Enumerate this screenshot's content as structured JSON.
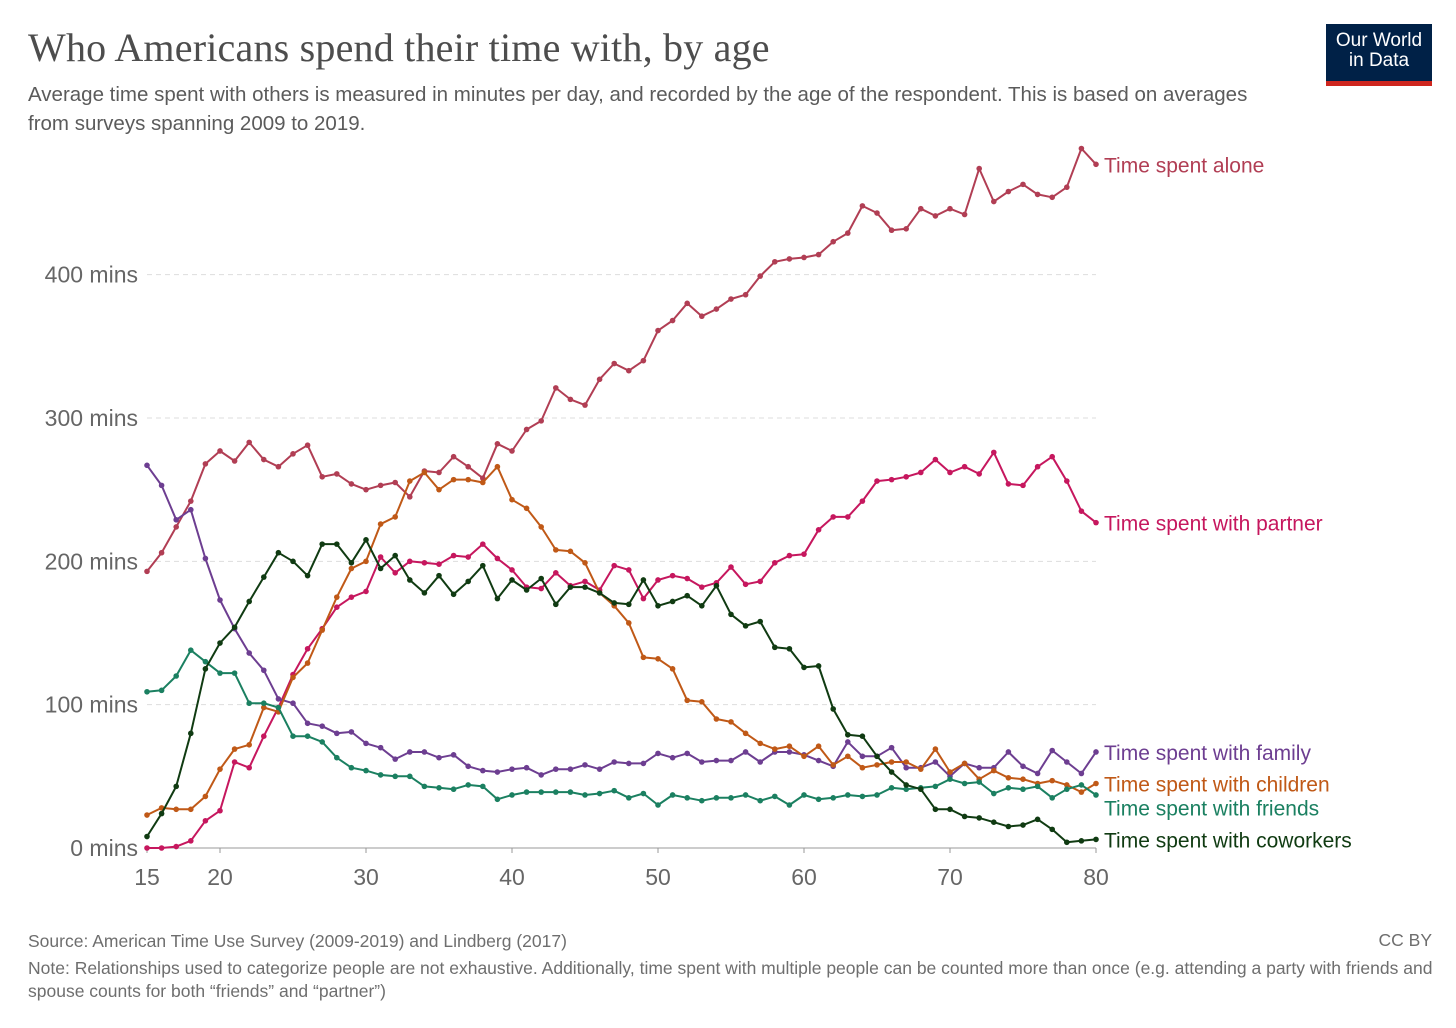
{
  "header": {
    "title": "Who Americans spend their time with, by age",
    "subtitle": "Average time spent with others is measured in minutes per day, and recorded by the age of the respondent. This is based on averages from surveys spanning 2009 to 2019.",
    "logo_line1": "Our World",
    "logo_line2": "in Data"
  },
  "footer": {
    "source": "Source: American Time Use Survey (2009-2019) and Lindberg (2017)",
    "note": "Note: Relationships used to categorize people are not exhaustive. Additionally, time spent with multiple people can be counted more than once (e.g. attending a party with friends and spouse counts for both “friends” and “partner”)",
    "license": "CC BY"
  },
  "chart_data": {
    "type": "line",
    "xlim": [
      15,
      80
    ],
    "ylim": [
      0,
      480
    ],
    "x_ticks": [
      {
        "value": 15,
        "label": "15"
      },
      {
        "value": 20,
        "label": "20"
      },
      {
        "value": 30,
        "label": "30"
      },
      {
        "value": 40,
        "label": "40"
      },
      {
        "value": 50,
        "label": "50"
      },
      {
        "value": 60,
        "label": "60"
      },
      {
        "value": 70,
        "label": "70"
      },
      {
        "value": 80,
        "label": "80"
      }
    ],
    "y_ticks": [
      {
        "value": 0,
        "label": "0 mins"
      },
      {
        "value": 100,
        "label": "100 mins"
      },
      {
        "value": 200,
        "label": "200 mins"
      },
      {
        "value": 300,
        "label": "300 mins"
      },
      {
        "value": 400,
        "label": "400 mins"
      }
    ],
    "grid": "horizontal dashed",
    "legend": "labels at line ends (right)",
    "x": [
      15,
      16,
      17,
      18,
      19,
      20,
      21,
      22,
      23,
      24,
      25,
      26,
      27,
      28,
      29,
      30,
      31,
      32,
      33,
      34,
      35,
      36,
      37,
      38,
      39,
      40,
      41,
      42,
      43,
      44,
      45,
      46,
      47,
      48,
      49,
      50,
      51,
      52,
      53,
      54,
      55,
      56,
      57,
      58,
      59,
      60,
      61,
      62,
      63,
      64,
      65,
      66,
      67,
      68,
      69,
      70,
      71,
      72,
      73,
      74,
      75,
      76,
      77,
      78,
      79,
      80
    ],
    "series": [
      {
        "name": "Time spent alone",
        "color": "#b13e54",
        "values": [
          193,
          206,
          224,
          242,
          268,
          277,
          270,
          283,
          271,
          266,
          275,
          281,
          259,
          261,
          254,
          250,
          253,
          255,
          245,
          263,
          262,
          273,
          266,
          258,
          282,
          277,
          292,
          298,
          321,
          313,
          309,
          327,
          338,
          333,
          340,
          361,
          368,
          380,
          371,
          376,
          383,
          386,
          399,
          409,
          411,
          412,
          414,
          423,
          429,
          448,
          443,
          431,
          432,
          446,
          441,
          446,
          442,
          474,
          451,
          458,
          463,
          456,
          454,
          461,
          488,
          477
        ]
      },
      {
        "name": "Time spent with partner",
        "color": "#c6175e",
        "values": [
          0,
          0,
          1,
          5,
          19,
          26,
          60,
          56,
          78,
          98,
          121,
          139,
          153,
          168,
          175,
          179,
          203,
          192,
          200,
          199,
          198,
          204,
          203,
          212,
          202,
          194,
          182,
          181,
          192,
          183,
          186,
          180,
          197,
          194,
          174,
          187,
          190,
          188,
          182,
          185,
          196,
          184,
          186,
          199,
          204,
          205,
          222,
          231,
          231,
          242,
          256,
          257,
          259,
          262,
          271,
          262,
          266,
          261,
          276,
          254,
          253,
          266,
          273,
          256,
          235,
          227
        ]
      },
      {
        "name": "Time spent with family",
        "color": "#6d3e91",
        "values": [
          267,
          253,
          229,
          236,
          202,
          173,
          153,
          136,
          124,
          104,
          101,
          87,
          85,
          80,
          81,
          73,
          70,
          62,
          67,
          67,
          63,
          65,
          57,
          54,
          53,
          55,
          56,
          51,
          55,
          55,
          58,
          55,
          60,
          59,
          59,
          66,
          63,
          66,
          60,
          61,
          61,
          67,
          60,
          67,
          67,
          65,
          61,
          57,
          74,
          64,
          64,
          70,
          56,
          56,
          60,
          50,
          59,
          56,
          56,
          67,
          57,
          52,
          68,
          60,
          52,
          67
        ]
      },
      {
        "name": "Time spent with children",
        "color": "#c05917",
        "values": [
          23,
          28,
          27,
          27,
          36,
          55,
          69,
          72,
          98,
          95,
          119,
          129,
          152,
          175,
          195,
          200,
          226,
          231,
          256,
          262,
          250,
          257,
          257,
          255,
          266,
          243,
          237,
          224,
          208,
          207,
          199,
          178,
          169,
          157,
          133,
          132,
          125,
          103,
          102,
          90,
          88,
          80,
          73,
          69,
          71,
          64,
          71,
          58,
          64,
          56,
          58,
          60,
          60,
          55,
          69,
          53,
          59,
          48,
          54,
          49,
          48,
          45,
          47,
          44,
          39,
          45
        ]
      },
      {
        "name": "Time spent with friends",
        "color": "#1b8061",
        "values": [
          109,
          110,
          120,
          138,
          130,
          122,
          122,
          101,
          101,
          98,
          78,
          78,
          74,
          63,
          56,
          54,
          51,
          50,
          50,
          43,
          42,
          41,
          44,
          43,
          34,
          37,
          39,
          39,
          39,
          39,
          37,
          38,
          40,
          35,
          38,
          30,
          37,
          35,
          33,
          35,
          35,
          37,
          33,
          36,
          30,
          37,
          34,
          35,
          37,
          36,
          37,
          42,
          41,
          42,
          43,
          48,
          45,
          46,
          38,
          42,
          41,
          43,
          35,
          41,
          44,
          37
        ]
      },
      {
        "name": "Time spent with coworkers",
        "color": "#103b12",
        "values": [
          8,
          24,
          43,
          80,
          125,
          143,
          154,
          172,
          189,
          206,
          200,
          190,
          212,
          212,
          199,
          215,
          195,
          204,
          187,
          178,
          190,
          177,
          186,
          197,
          174,
          187,
          180,
          188,
          170,
          182,
          182,
          178,
          171,
          170,
          187,
          169,
          172,
          176,
          169,
          183,
          163,
          155,
          158,
          140,
          139,
          126,
          127,
          97,
          79,
          78,
          64,
          53,
          44,
          41,
          27,
          27,
          22,
          21,
          18,
          15,
          16,
          20,
          13,
          4,
          5,
          6
        ]
      }
    ]
  }
}
